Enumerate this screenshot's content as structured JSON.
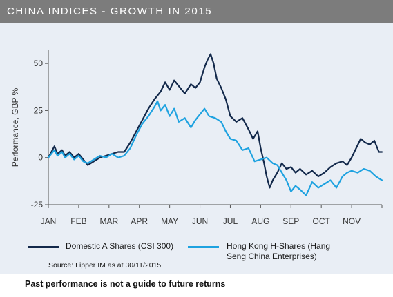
{
  "header": {
    "title": "CHINA INDICES - GROWTH IN 2015"
  },
  "colors": {
    "header_bg": "#7c7c7c",
    "panel_bg": "#e9eef5",
    "domestic": "#13294b",
    "hongkong": "#1ea2e0"
  },
  "legend": {
    "domestic": "Domestic A Shares (CSI 300)",
    "hongkong_line1": "Hong Kong H-Shares (Hang",
    "hongkong_line2": "Seng China Enterprises)"
  },
  "source": "Source: Lipper IM as at 30/11/2015",
  "disclaimer": "Past performance is not a guide to future returns",
  "chart_data": {
    "type": "line",
    "title": "CHINA INDICES - GROWTH IN 2015",
    "ylabel": "Performance, GBP %",
    "xlabel": "",
    "ylim": [
      -25,
      57
    ],
    "yticks": [
      -25,
      0,
      25,
      50
    ],
    "ytick_labels": [
      "-25",
      "0",
      "25",
      "50"
    ],
    "xlim": [
      0,
      11
    ],
    "x_categories": [
      "JAN",
      "FEB",
      "MAR",
      "APR",
      "MAY",
      "JUN",
      "JUL",
      "AUG",
      "SEP",
      "OCT",
      "NOV"
    ],
    "grid": false,
    "legend_position": "bottom",
    "series": [
      {
        "name": "Domestic A Shares (CSI 300)",
        "color": "#13294b",
        "x": [
          0,
          0.1,
          0.2,
          0.3,
          0.45,
          0.55,
          0.7,
          0.85,
          1.0,
          1.15,
          1.3,
          1.5,
          1.7,
          1.9,
          2.1,
          2.3,
          2.5,
          2.7,
          2.9,
          3.1,
          3.3,
          3.5,
          3.7,
          3.85,
          4.0,
          4.15,
          4.3,
          4.5,
          4.7,
          4.85,
          5.0,
          5.15,
          5.25,
          5.35,
          5.45,
          5.55,
          5.7,
          5.85,
          6.0,
          6.2,
          6.4,
          6.6,
          6.75,
          6.9,
          7.0,
          7.1,
          7.2,
          7.3,
          7.4,
          7.55,
          7.7,
          7.85,
          8.0,
          8.15,
          8.3,
          8.5,
          8.7,
          8.9,
          9.1,
          9.3,
          9.5,
          9.7,
          9.85,
          10.0,
          10.15,
          10.3,
          10.45,
          10.6,
          10.75,
          10.9,
          11.0
        ],
        "values": [
          0,
          3,
          6,
          2,
          4,
          1,
          3,
          0,
          2,
          -1,
          -4,
          -2,
          0,
          1,
          2,
          3,
          3,
          8,
          14,
          20,
          26,
          31,
          35,
          40,
          36,
          41,
          38,
          34,
          39,
          37,
          40,
          48,
          52,
          55,
          50,
          42,
          37,
          31,
          22,
          19,
          21,
          15,
          10,
          14,
          5,
          -2,
          -10,
          -16,
          -12,
          -8,
          -3,
          -6,
          -5,
          -8,
          -6,
          -9,
          -7,
          -10,
          -8,
          -5,
          -3,
          -2,
          -4,
          0,
          5,
          10,
          8,
          7,
          9,
          3,
          3
        ]
      },
      {
        "name": "Hong Kong H-Shares (Hang Seng China Enterprises)",
        "color": "#1ea2e0",
        "x": [
          0,
          0.1,
          0.2,
          0.3,
          0.45,
          0.55,
          0.7,
          0.85,
          1.0,
          1.15,
          1.3,
          1.5,
          1.7,
          1.9,
          2.1,
          2.3,
          2.5,
          2.7,
          2.9,
          3.1,
          3.3,
          3.5,
          3.6,
          3.7,
          3.85,
          4.0,
          4.15,
          4.3,
          4.5,
          4.7,
          4.85,
          5.0,
          5.15,
          5.3,
          5.5,
          5.7,
          5.85,
          6.0,
          6.2,
          6.4,
          6.6,
          6.8,
          7.0,
          7.2,
          7.4,
          7.55,
          7.7,
          7.85,
          8.0,
          8.15,
          8.3,
          8.5,
          8.7,
          8.9,
          9.1,
          9.3,
          9.5,
          9.7,
          9.85,
          10.0,
          10.2,
          10.4,
          10.6,
          10.8,
          10.9,
          11.0
        ],
        "values": [
          0,
          2,
          4,
          1,
          3,
          0,
          2,
          -1,
          1,
          -2,
          -3,
          -1,
          1,
          0,
          2,
          0,
          1,
          5,
          12,
          18,
          22,
          27,
          30,
          25,
          28,
          22,
          26,
          19,
          21,
          16,
          20,
          23,
          26,
          22,
          21,
          19,
          14,
          10,
          9,
          4,
          5,
          -2,
          -1,
          0,
          -3,
          -4,
          -8,
          -12,
          -18,
          -15,
          -17,
          -20,
          -13,
          -16,
          -14,
          -12,
          -16,
          -10,
          -8,
          -7,
          -8,
          -6,
          -7,
          -10,
          -11,
          -12
        ]
      }
    ]
  }
}
